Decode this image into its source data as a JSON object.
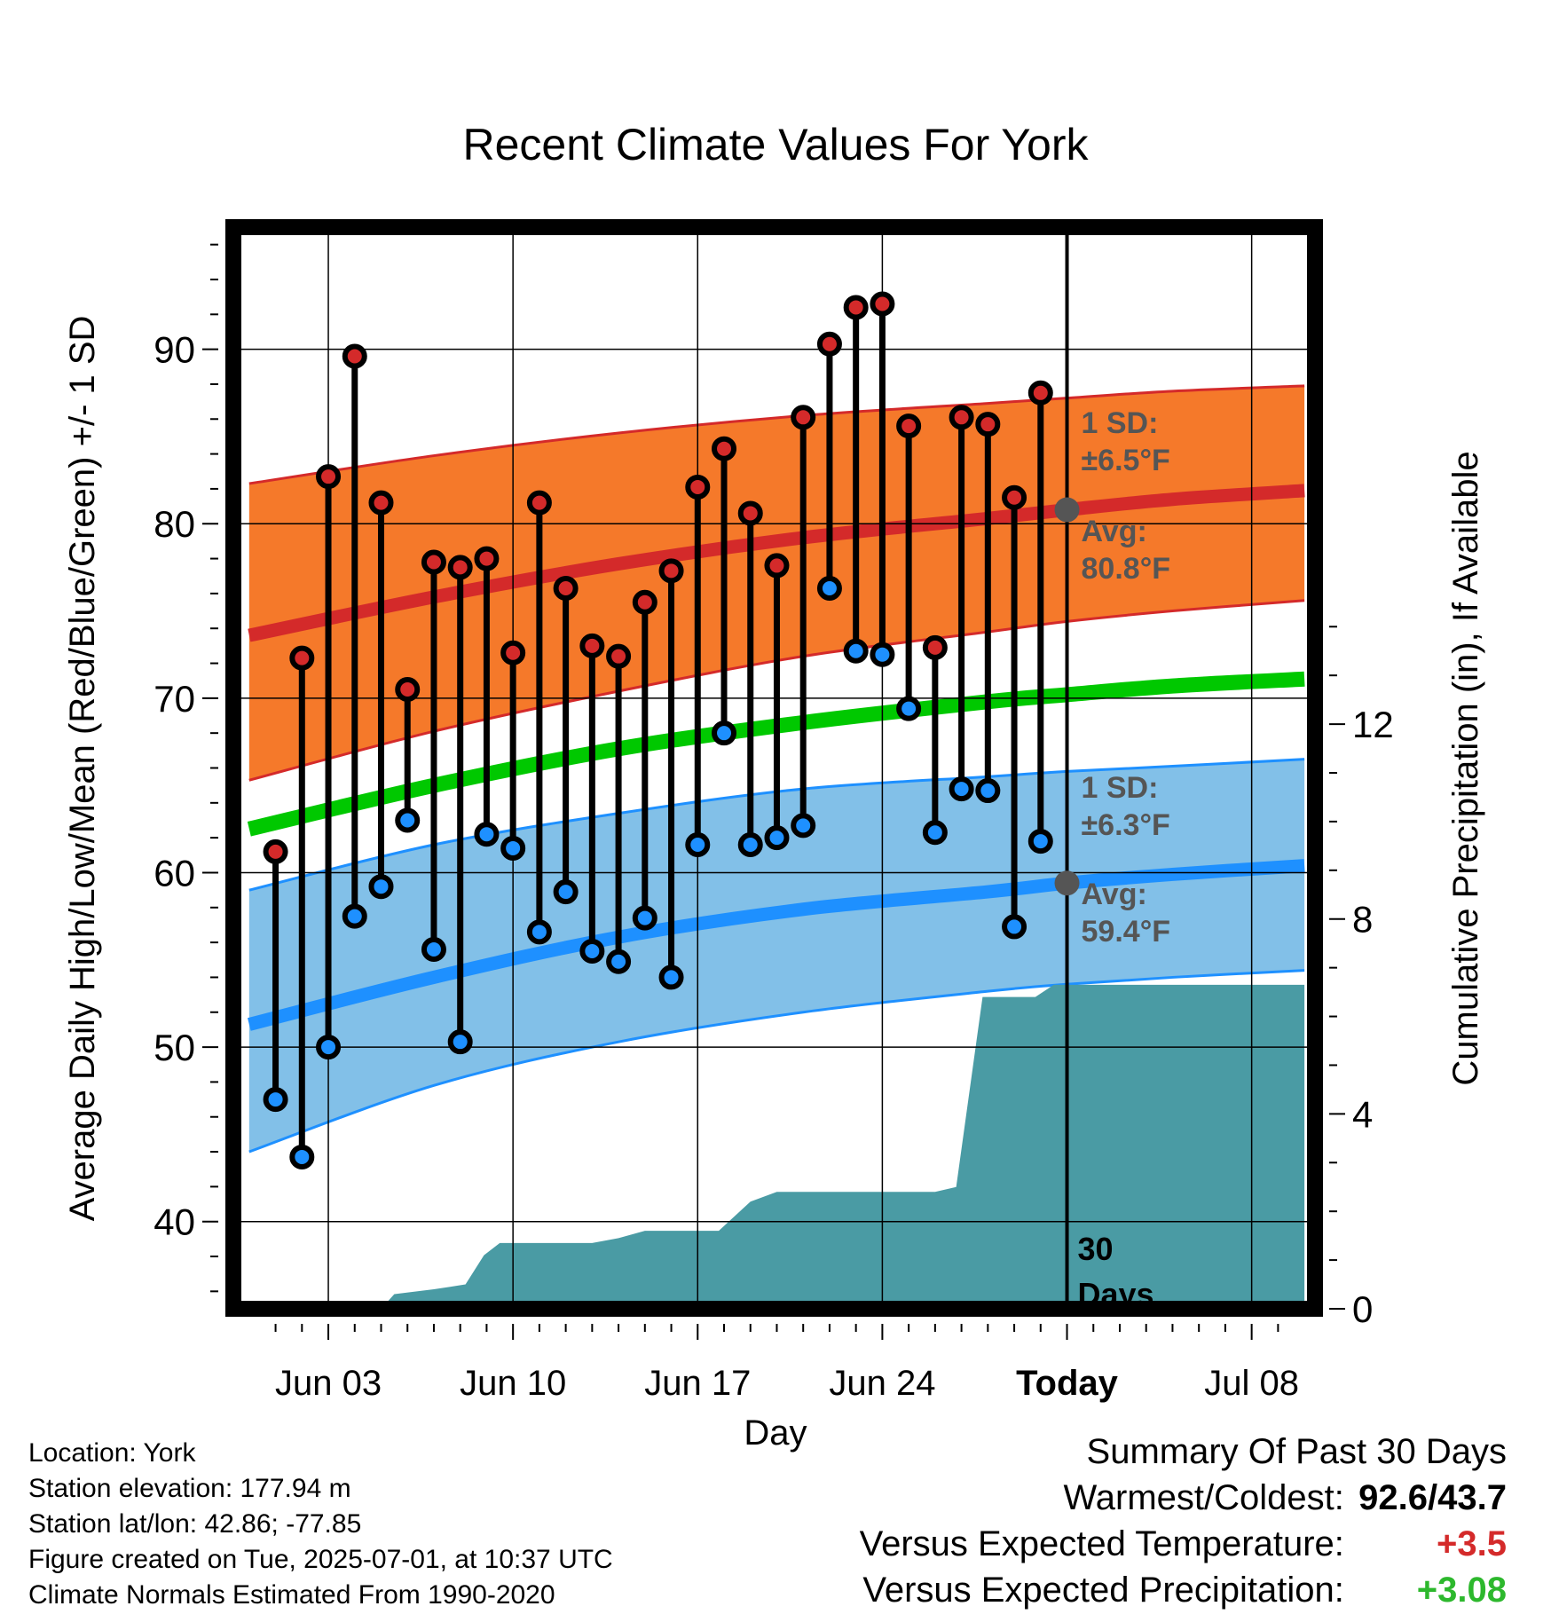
{
  "chart_data": {
    "type": "line",
    "title": "Recent Climate Values For York",
    "xlabel": "Day",
    "ylabel": "Average Daily High/Low/Mean (Red/Blue/Green) +/- 1 SD",
    "y2label": "Cumulative Precipitation (in), If Available",
    "ylim": [
      35,
      97
    ],
    "y2lim": [
      0,
      22.2
    ],
    "xlim": [
      -1.6,
      39.4
    ],
    "grid": true,
    "x_ticks": [
      {
        "day": 2,
        "label": "Jun 03"
      },
      {
        "day": 9,
        "label": "Jun 10"
      },
      {
        "day": 16,
        "label": "Jun 17"
      },
      {
        "day": 23,
        "label": "Jun 24"
      },
      {
        "day": 30,
        "label": "Today"
      },
      {
        "day": 37,
        "label": "Jul 08"
      }
    ],
    "y_ticks": [
      40,
      50,
      60,
      70,
      80,
      90
    ],
    "y2_ticks": [
      0,
      4,
      8,
      12
    ],
    "today_day": 30,
    "today_label_line1": "30",
    "today_label_line2": "Days",
    "high_normal": {
      "x": [
        -1,
        6,
        13,
        20,
        27,
        30,
        34,
        39
      ],
      "mean": [
        73.6,
        75.8,
        77.7,
        79.2,
        80.3,
        80.8,
        81.4,
        81.9
      ],
      "upper": [
        82.3,
        83.9,
        85.2,
        86.2,
        86.9,
        87.2,
        87.6,
        87.9
      ],
      "lower": [
        65.3,
        68.1,
        70.4,
        72.4,
        73.8,
        74.4,
        75.0,
        75.6
      ],
      "sd_label": "1 SD:",
      "sd_value": "±6.5°F",
      "avg_label": "Avg:",
      "avg_value": "80.8°F",
      "avg_at_today": 80.8
    },
    "low_normal": {
      "x": [
        -1,
        6,
        13,
        20,
        27,
        30,
        34,
        39
      ],
      "mean": [
        51.3,
        54.0,
        56.3,
        57.9,
        58.9,
        59.4,
        59.9,
        60.4
      ],
      "upper": [
        59.0,
        61.6,
        63.4,
        64.8,
        65.5,
        65.8,
        66.1,
        66.5
      ],
      "lower": [
        44.0,
        47.8,
        50.3,
        52.0,
        53.2,
        53.6,
        54.0,
        54.4
      ],
      "sd_label": "1 SD:",
      "sd_value": "±6.3°F",
      "avg_label": "Avg:",
      "avg_value": "59.4°F",
      "avg_at_today": 59.4
    },
    "mean_normal": {
      "x": [
        -1,
        6,
        13,
        20,
        27,
        30,
        34,
        39
      ],
      "values": [
        62.5,
        65.0,
        67.1,
        68.6,
        69.8,
        70.2,
        70.7,
        71.1
      ]
    },
    "daily": [
      {
        "day": 0,
        "high": 61.2,
        "low": 47.0
      },
      {
        "day": 1,
        "high": 72.3,
        "low": 43.7
      },
      {
        "day": 2,
        "high": 82.7,
        "low": 50.0
      },
      {
        "day": 3,
        "high": 89.6,
        "low": 57.5
      },
      {
        "day": 4,
        "high": 81.2,
        "low": 59.2
      },
      {
        "day": 5,
        "high": 70.5,
        "low": 63.0
      },
      {
        "day": 6,
        "high": 77.8,
        "low": 55.6
      },
      {
        "day": 7,
        "high": 77.5,
        "low": 50.3
      },
      {
        "day": 8,
        "high": 78.0,
        "low": 62.2
      },
      {
        "day": 9,
        "high": 72.6,
        "low": 61.4
      },
      {
        "day": 10,
        "high": 81.2,
        "low": 56.6
      },
      {
        "day": 11,
        "high": 76.3,
        "low": 58.9
      },
      {
        "day": 12,
        "high": 73.0,
        "low": 55.5
      },
      {
        "day": 13,
        "high": 72.4,
        "low": 54.9
      },
      {
        "day": 14,
        "high": 75.5,
        "low": 57.4
      },
      {
        "day": 15,
        "high": 77.3,
        "low": 54.0
      },
      {
        "day": 16,
        "high": 82.1,
        "low": 61.6
      },
      {
        "day": 17,
        "high": 84.3,
        "low": 68.0
      },
      {
        "day": 18,
        "high": 80.6,
        "low": 61.6
      },
      {
        "day": 19,
        "high": 77.6,
        "low": 62.0
      },
      {
        "day": 20,
        "high": 86.1,
        "low": 62.7
      },
      {
        "day": 21,
        "high": 90.3,
        "low": 76.3
      },
      {
        "day": 22,
        "high": 92.4,
        "low": 72.7
      },
      {
        "day": 23,
        "high": 92.6,
        "low": 72.5
      },
      {
        "day": 24,
        "high": 85.6,
        "low": 69.4
      },
      {
        "day": 25,
        "high": 72.9,
        "low": 62.3
      },
      {
        "day": 26,
        "high": 86.1,
        "low": 64.8
      },
      {
        "day": 27,
        "high": 85.7,
        "low": 64.7
      },
      {
        "day": 28,
        "high": 81.5,
        "low": 56.9
      },
      {
        "day": 29,
        "high": 87.5,
        "low": 61.8
      }
    ],
    "precip": {
      "x": [
        4,
        4.5,
        6,
        7.2,
        7.9,
        8.5,
        12,
        13,
        14,
        15,
        16,
        16.8,
        18,
        19,
        20,
        21,
        22,
        23,
        24,
        25,
        25.8,
        26.8,
        27,
        28,
        28.8,
        29.5,
        30,
        39
      ],
      "values": [
        0,
        0.3,
        0.4,
        0.5,
        1.1,
        1.35,
        1.35,
        1.45,
        1.6,
        1.6,
        1.6,
        1.6,
        2.2,
        2.4,
        2.4,
        2.4,
        2.4,
        2.4,
        2.4,
        2.4,
        2.5,
        6.4,
        6.4,
        6.4,
        6.4,
        6.65,
        6.65,
        6.65
      ]
    }
  },
  "footer": {
    "location": "Location: York",
    "elevation": "Station elevation: 177.94 m",
    "latlon": "Station lat/lon: 42.86; -77.85",
    "created": "Figure created on Tue, 2025-07-01, at 10:37 UTC",
    "normals": "Climate Normals Estimated From 1990-2020"
  },
  "summary": {
    "title": "Summary Of Past 30 Days",
    "warmest_label": "Warmest/Coldest:",
    "warmest_value": "92.6/43.7",
    "temp_label": "Versus Expected Temperature:",
    "temp_value": "+3.5",
    "precip_label": "Versus Expected Precipitation:",
    "precip_value": "+3.08"
  },
  "colors": {
    "high_band": "#F5792A",
    "high_line": "#D42A2A",
    "low_band": "#82C0E8",
    "low_line": "#1E90FF",
    "mean_line": "#00C800",
    "precip_fill": "#4A9BA4",
    "high_dot": "#D42A2A",
    "low_dot": "#1E90FF",
    "annotation": "#555555",
    "temp_anomaly": "#D42A2A",
    "precip_anomaly": "#2DB82D"
  }
}
